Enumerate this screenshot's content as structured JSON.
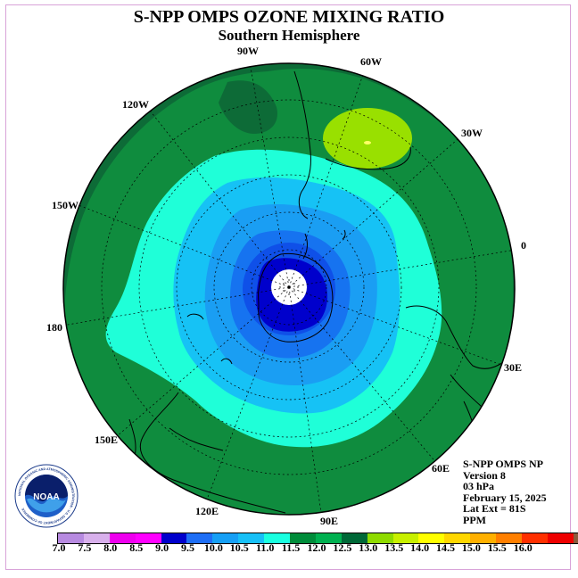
{
  "title": "S-NPP OMPS OZONE MIXING RATIO",
  "subtitle": "Southern Hemisphere",
  "longitude_labels": [
    "90W",
    "60W",
    "30W",
    "120W",
    "150W",
    "0",
    "180",
    "30E",
    "150E",
    "60E",
    "120E",
    "90E"
  ],
  "info": {
    "product": "S-NPP OMPS NP",
    "version": "Version 8",
    "level": "03 hPa",
    "date": "February 15, 2025",
    "lat_ext": "Lat Ext = 81S",
    "units": "PPM"
  },
  "logo": {
    "text": "NOAA",
    "ring_text": "NATIONAL OCEANIC AND ATMOSPHERIC ADMINISTRATION · U.S. DEPARTMENT OF COMMERCE"
  },
  "colorbar": {
    "ticks": [
      "7.0",
      "7.5",
      "8.0",
      "8.5",
      "9.0",
      "9.5",
      "10.0",
      "10.5",
      "11.0",
      "11.5",
      "12.0",
      "12.5",
      "13.0",
      "13.5",
      "14.0",
      "14.5",
      "15.0",
      "15.5",
      "16.0"
    ],
    "colors": [
      "#b78ae0",
      "#d8b0ec",
      "#ee00ee",
      "#ff00ff",
      "#0000cc",
      "#1e6ef5",
      "#169ff5",
      "#17c0f7",
      "#1affe0",
      "#008c3a",
      "#00b050",
      "#006837",
      "#8fdb00",
      "#c8f000",
      "#ffff00",
      "#ffd700",
      "#ffb000",
      "#ff7f00",
      "#ff3000",
      "#ee0000",
      "#8b5a3c"
    ]
  },
  "map_colors": {
    "dark_green": "#0d6b37",
    "green": "#0f8c3e",
    "aqua": "#1fffd8",
    "light_blue": "#16c2f5",
    "mid_blue": "#1a9ef3",
    "blue": "#1673f0",
    "dark_blue": "#0000cc",
    "lime": "#99e000"
  }
}
